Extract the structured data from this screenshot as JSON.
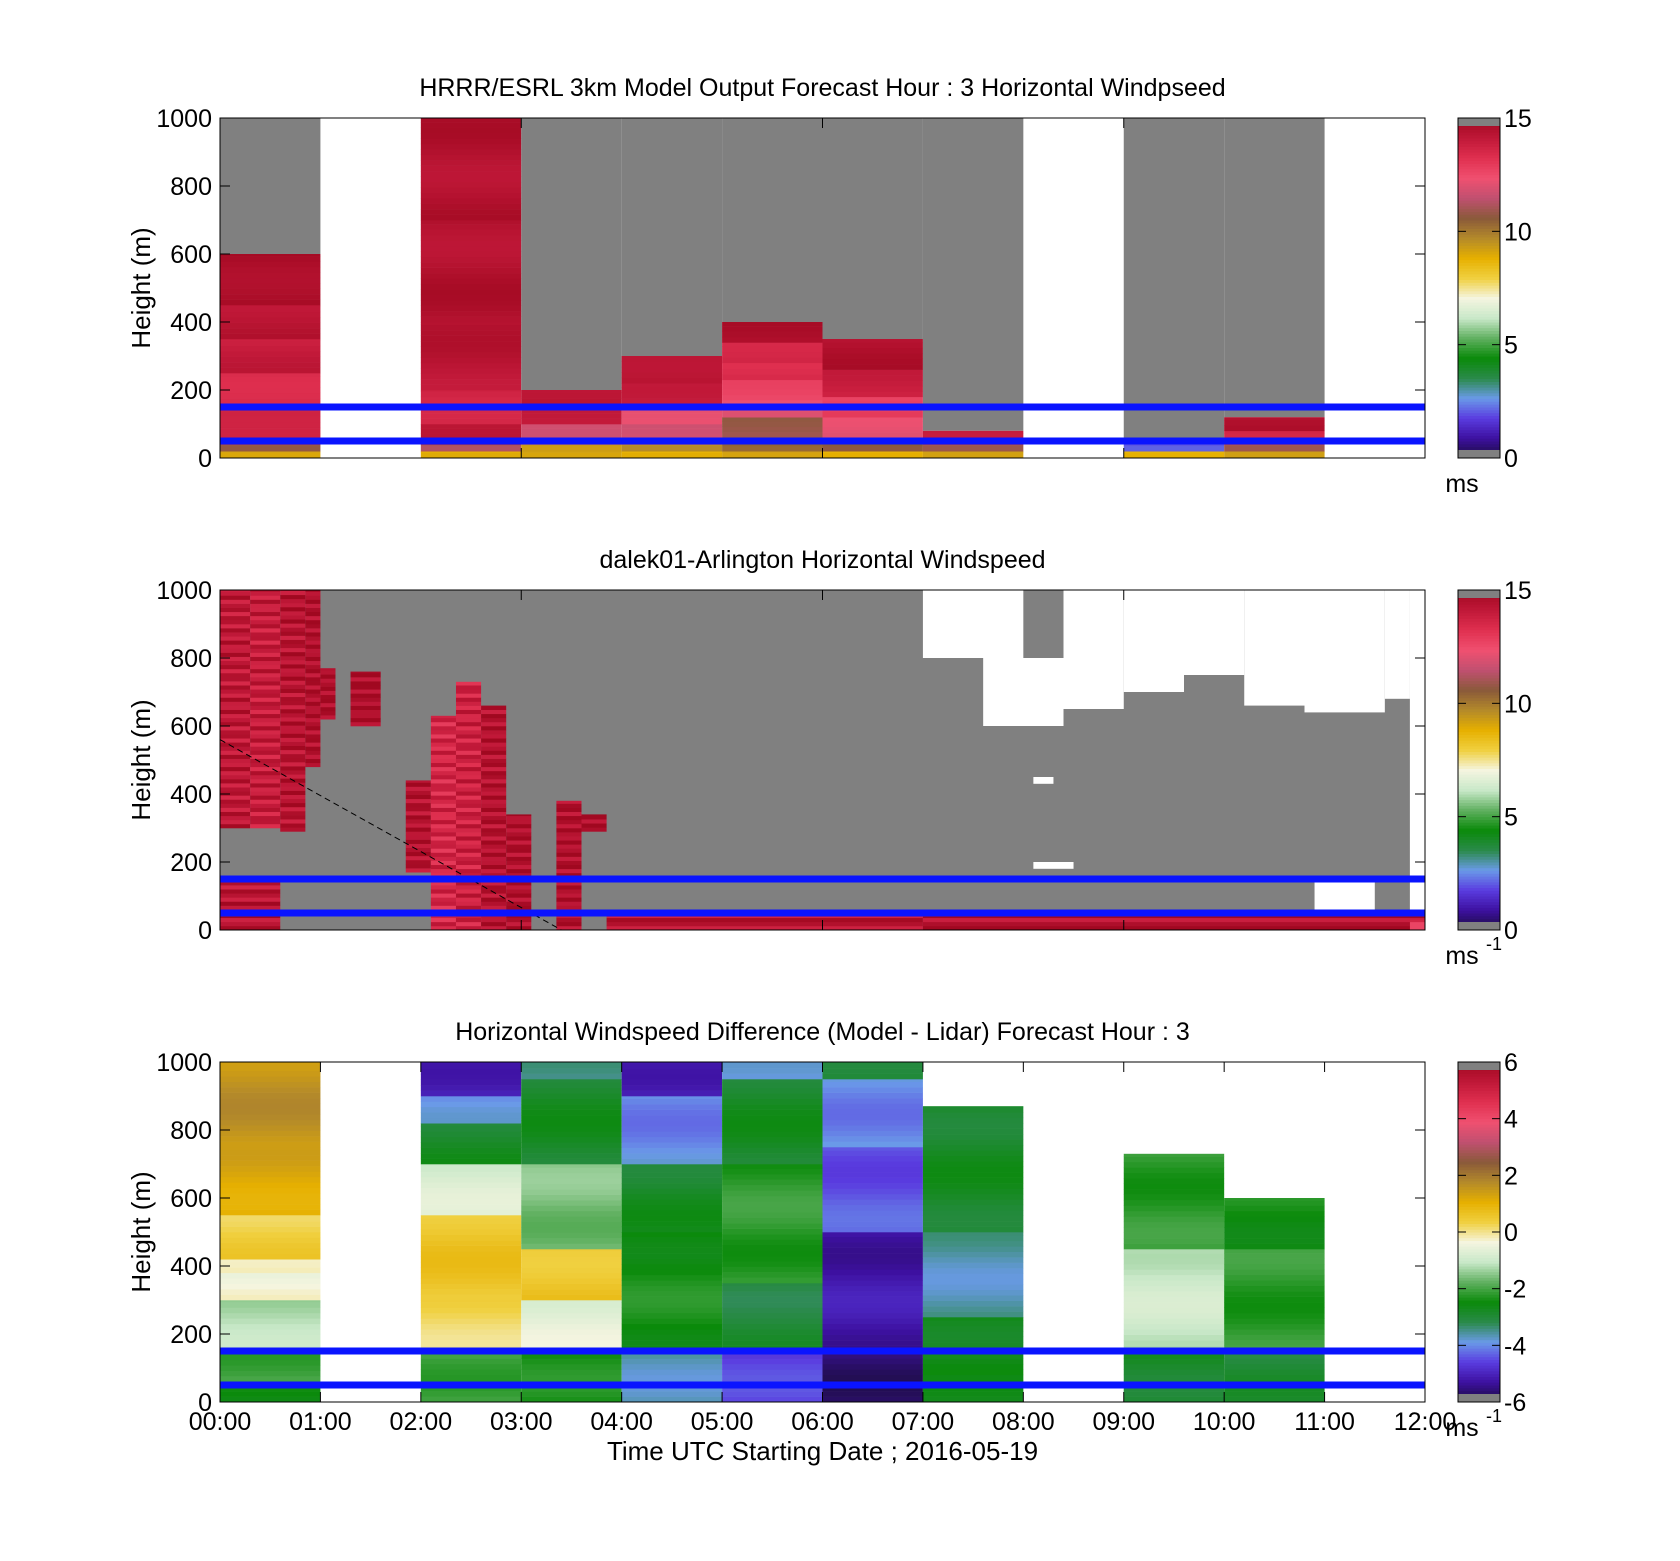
{
  "colors": {
    "missing": "#808080",
    "reference_line": "#0a14ff",
    "colormap_speed": [
      "#1a0d3a",
      "#3d10a0",
      "#5a3ce0",
      "#6a9ae8",
      "#2a8a4a",
      "#0a8a0a",
      "#60b060",
      "#c8e8c8",
      "#f5f5e0",
      "#f0d040",
      "#e6b000",
      "#b48a2a",
      "#8a5a3a",
      "#c05070",
      "#f05070",
      "#e03050",
      "#c01838",
      "#a00820"
    ],
    "colormap_diff": [
      "#1a0d3a",
      "#3d10a0",
      "#5a3ce0",
      "#6a9ae8",
      "#2a8a4a",
      "#0a8a0a",
      "#60b060",
      "#c8e8c8",
      "#f5f5e0",
      "#f0d040",
      "#e6b000",
      "#b48a2a",
      "#8a5a3a",
      "#c05070",
      "#f05070",
      "#e03050",
      "#c01838",
      "#a00820"
    ]
  },
  "chart_data": [
    {
      "type": "heatmap",
      "id": "model",
      "title": "HRRR/ESRL 3km Model Output   Forecast Hour : 3 Horizontal Windpseed",
      "ylabel": "Height (m)",
      "xlabel": "",
      "xlim": [
        0,
        12
      ],
      "ylim": [
        0,
        1000
      ],
      "yticks": [
        0,
        200,
        400,
        600,
        800,
        1000
      ],
      "xticks": [
        0,
        3,
        6,
        9,
        12
      ],
      "xtick_labels": [],
      "colorbar": {
        "min": 0,
        "max": 15,
        "ticks": [
          0,
          5,
          10,
          15
        ],
        "unit": "ms",
        "unit_sup": "",
        "scale": "speed"
      },
      "reference_lines_m": [
        150,
        50
      ],
      "columns": [
        {
          "t0": 0,
          "t1": 1,
          "missing_from": 600,
          "profile": [
            [
              0,
              20,
              9
            ],
            [
              20,
              40,
              11
            ],
            [
              40,
              90,
              14
            ],
            [
              90,
              160,
              14
            ],
            [
              160,
              250,
              13.6
            ],
            [
              250,
              350,
              14
            ],
            [
              350,
              450,
              14.4
            ],
            [
              450,
              600,
              14.8
            ]
          ]
        },
        {
          "t0": 2,
          "t1": 3,
          "missing_from": 1000,
          "profile": [
            [
              0,
              20,
              9
            ],
            [
              20,
              40,
              11
            ],
            [
              40,
              100,
              14
            ],
            [
              100,
              200,
              13.8
            ],
            [
              200,
              400,
              14.3
            ],
            [
              400,
              700,
              14.5
            ],
            [
              700,
              1000,
              14.5
            ]
          ]
        },
        {
          "t0": 3,
          "t1": 4,
          "missing_from": 200,
          "profile": [
            [
              0,
              20,
              9
            ],
            [
              20,
              40,
              9.5
            ],
            [
              40,
              100,
              12
            ],
            [
              100,
              160,
              13.8
            ],
            [
              160,
              200,
              14.5
            ]
          ]
        },
        {
          "t0": 4,
          "t1": 5,
          "missing_from": 300,
          "profile": [
            [
              0,
              20,
              9
            ],
            [
              20,
              40,
              9.5
            ],
            [
              40,
              100,
              11.5
            ],
            [
              100,
              160,
              12.5
            ],
            [
              160,
              220,
              13.8
            ],
            [
              220,
              300,
              14.5
            ]
          ]
        },
        {
          "t0": 5,
          "t1": 6,
          "missing_from": 400,
          "profile": [
            [
              0,
              20,
              9
            ],
            [
              20,
              60,
              10.5
            ],
            [
              60,
              120,
              11
            ],
            [
              120,
              170,
              12
            ],
            [
              170,
              230,
              12.5
            ],
            [
              230,
              280,
              13.5
            ],
            [
              280,
              340,
              13.8
            ],
            [
              340,
              400,
              14.5
            ]
          ]
        },
        {
          "t0": 6,
          "t1": 7,
          "missing_from": 350,
          "profile": [
            [
              0,
              20,
              9
            ],
            [
              20,
              60,
              10.5
            ],
            [
              60,
              120,
              12
            ],
            [
              120,
              180,
              13
            ],
            [
              180,
              260,
              13.8
            ],
            [
              260,
              350,
              14.5
            ]
          ]
        },
        {
          "t0": 7,
          "t1": 8,
          "missing_from": 80,
          "profile": [
            [
              0,
              20,
              9
            ],
            [
              20,
              40,
              11
            ],
            [
              40,
              80,
              14.2
            ]
          ]
        },
        {
          "t0": 9,
          "t1": 10,
          "missing_from": 60,
          "profile": [
            [
              0,
              20,
              9
            ],
            [
              20,
              60,
              2
            ]
          ]
        },
        {
          "t0": 10,
          "t1": 11,
          "missing_from": 120,
          "profile": [
            [
              0,
              20,
              9
            ],
            [
              20,
              40,
              11
            ],
            [
              40,
              80,
              13.8
            ],
            [
              80,
              120,
              14.5
            ]
          ]
        }
      ]
    },
    {
      "type": "heatmap",
      "id": "lidar",
      "title": "dalek01-Arlington  Horizontal Windspeed",
      "ylabel": "Height (m)",
      "xlabel": "",
      "xlim": [
        0,
        12
      ],
      "ylim": [
        0,
        1000
      ],
      "yticks": [
        0,
        200,
        400,
        600,
        800,
        1000
      ],
      "xticks": [
        0,
        3,
        6,
        9,
        12
      ],
      "xtick_labels": [],
      "colorbar": {
        "min": 0,
        "max": 15,
        "ticks": [
          0,
          5,
          10,
          15
        ],
        "unit": "ms",
        "unit_sup": "-1",
        "scale": "speed"
      },
      "reference_lines_m": [
        150,
        50
      ],
      "dashed_line": [
        [
          0,
          560
        ],
        [
          3.4,
          0
        ]
      ],
      "background_missing_region": {
        "t0": 0,
        "t1": 11.85,
        "h_top": 1000
      },
      "gaps": [
        [
          7.0,
          8.0,
          800,
          1000
        ],
        [
          7.6,
          8.4,
          600,
          800
        ],
        [
          8.4,
          9.0,
          650,
          1000
        ],
        [
          9.0,
          9.6,
          700,
          1000
        ],
        [
          9.6,
          10.2,
          750,
          1000
        ],
        [
          10.2,
          10.8,
          660,
          1000
        ],
        [
          10.8,
          11.6,
          640,
          1000
        ],
        [
          11.6,
          11.85,
          680,
          1000
        ],
        [
          11.85,
          12,
          0,
          1000
        ],
        [
          10.9,
          11.5,
          60,
          140
        ],
        [
          8.1,
          8.5,
          180,
          200
        ],
        [
          8.1,
          8.3,
          430,
          450
        ]
      ],
      "red_blocks": [
        [
          0.0,
          0.3,
          300,
          1000,
          14.2
        ],
        [
          0.3,
          0.6,
          300,
          1000,
          14.0
        ],
        [
          0.6,
          0.85,
          290,
          1000,
          14.4
        ],
        [
          0.85,
          1.0,
          480,
          1000,
          14.6
        ],
        [
          0.0,
          0.6,
          0,
          160,
          14.3
        ],
        [
          1.0,
          1.15,
          620,
          770,
          14.7
        ],
        [
          1.3,
          1.6,
          600,
          760,
          14.7
        ],
        [
          1.85,
          2.1,
          170,
          440,
          14.5
        ],
        [
          2.1,
          2.35,
          0,
          630,
          13.6
        ],
        [
          2.35,
          2.6,
          0,
          730,
          13.8
        ],
        [
          2.6,
          2.85,
          0,
          660,
          14.5
        ],
        [
          2.85,
          3.1,
          0,
          340,
          14.6
        ],
        [
          3.35,
          3.6,
          0,
          380,
          14.6
        ],
        [
          3.6,
          3.85,
          290,
          340,
          14.7
        ],
        [
          3.85,
          7.0,
          0,
          60,
          14.4
        ],
        [
          7.0,
          12,
          0,
          50,
          14.5
        ],
        [
          11.85,
          12,
          0,
          30,
          13.0
        ]
      ]
    },
    {
      "type": "heatmap",
      "id": "difference",
      "title": "Horizontal Windspeed Difference (Model - Lidar) Forecast Hour : 3",
      "ylabel": "Height (m)",
      "xlabel": "Time UTC  Starting Date ; 2016-05-19",
      "xlim": [
        0,
        12
      ],
      "ylim": [
        0,
        1000
      ],
      "yticks": [
        0,
        200,
        400,
        600,
        800,
        1000
      ],
      "xticks": [
        0,
        1,
        2,
        3,
        4,
        5,
        6,
        7,
        8,
        9,
        10,
        11,
        12
      ],
      "xtick_labels": [
        "00:00",
        "01:00",
        "02:00",
        "03:00",
        "04:00",
        "05:00",
        "06:00",
        "07:00",
        "08:00",
        "09:00",
        "10:00",
        "11:00",
        "12:00"
      ],
      "colorbar": {
        "min": -6,
        "max": 6,
        "ticks": [
          -6,
          -4,
          -2,
          0,
          2,
          4,
          6
        ],
        "unit": "ms",
        "unit_sup": "-1",
        "scale": "diff"
      },
      "reference_lines_m": [
        150,
        50
      ],
      "columns": [
        {
          "t0": 0,
          "t1": 1,
          "top": 1000,
          "profile": [
            [
              0,
              60,
              -2.6
            ],
            [
              60,
              150,
              -2.0
            ],
            [
              150,
              300,
              -1.2
            ],
            [
              300,
              380,
              -0.4
            ],
            [
              380,
              420,
              0.0
            ],
            [
              420,
              550,
              0.4
            ],
            [
              550,
              750,
              1.2
            ],
            [
              750,
              1000,
              1.6
            ]
          ]
        },
        {
          "t0": 2,
          "t1": 3,
          "top": 1000,
          "profile": [
            [
              0,
              150,
              -2.0
            ],
            [
              150,
              300,
              0.2
            ],
            [
              300,
              550,
              0.6
            ],
            [
              550,
              700,
              -0.8
            ],
            [
              700,
              820,
              -2.8
            ],
            [
              820,
              900,
              -4.0
            ],
            [
              900,
              1000,
              -5.0
            ]
          ]
        },
        {
          "t0": 3,
          "t1": 4,
          "top": 1000,
          "profile": [
            [
              0,
              150,
              -2.4
            ],
            [
              150,
              300,
              -0.6
            ],
            [
              300,
              450,
              0.6
            ],
            [
              450,
              700,
              -1.6
            ],
            [
              700,
              950,
              -2.8
            ],
            [
              950,
              1000,
              -3.6
            ]
          ]
        },
        {
          "t0": 4,
          "t1": 5,
          "top": 1000,
          "profile": [
            [
              0,
              150,
              -3.6
            ],
            [
              150,
              500,
              -2.4
            ],
            [
              500,
              700,
              -2.8
            ],
            [
              700,
              900,
              -4.0
            ],
            [
              900,
              1000,
              -5.0
            ]
          ]
        },
        {
          "t0": 5,
          "t1": 6,
          "top": 1000,
          "profile": [
            [
              0,
              150,
              -4.6
            ],
            [
              150,
              350,
              -3.0
            ],
            [
              350,
              700,
              -2.2
            ],
            [
              700,
              950,
              -2.8
            ],
            [
              950,
              1000,
              -4.0
            ]
          ]
        },
        {
          "t0": 6,
          "t1": 7,
          "top": 1000,
          "profile": [
            [
              0,
              150,
              -5.6
            ],
            [
              150,
              500,
              -5.2
            ],
            [
              500,
              750,
              -4.4
            ],
            [
              750,
              950,
              -4.0
            ],
            [
              950,
              1000,
              -2.8
            ]
          ]
        },
        {
          "t0": 7,
          "t1": 8,
          "top": 870,
          "profile": [
            [
              0,
              80,
              -2.8
            ],
            [
              80,
              250,
              -2.6
            ],
            [
              250,
              500,
              -3.6
            ],
            [
              500,
              870,
              -2.8
            ]
          ]
        },
        {
          "t0": 9,
          "t1": 10,
          "top": 730,
          "profile": [
            [
              0,
              150,
              -2.8
            ],
            [
              150,
              450,
              -1.0
            ],
            [
              450,
              730,
              -2.2
            ]
          ]
        },
        {
          "t0": 10,
          "t1": 11,
          "top": 600,
          "profile": [
            [
              0,
              150,
              -3.0
            ],
            [
              150,
              450,
              -2.2
            ],
            [
              450,
              600,
              -2.4
            ]
          ]
        }
      ]
    }
  ]
}
